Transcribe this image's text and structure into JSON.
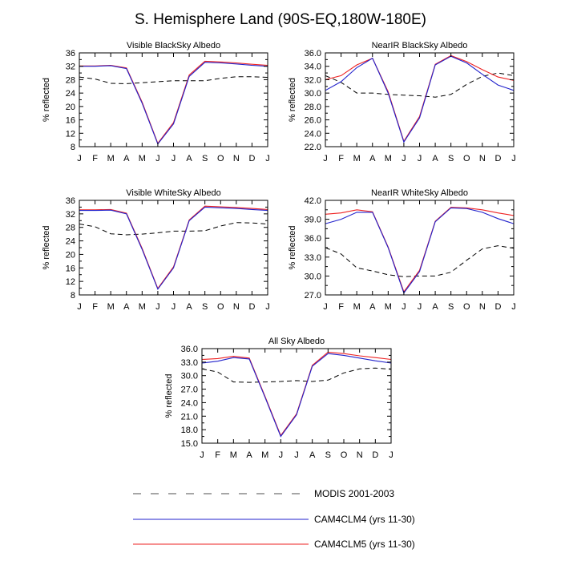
{
  "figure": {
    "title": "S. Hemisphere Land (90S-EQ,180W-180E)"
  },
  "legend": [
    {
      "label": "MODIS 2001-2003",
      "color": "#888888",
      "dash": "dashed"
    },
    {
      "label": "CAM4CLM4 (yrs 11-30)",
      "color": "#2222cc",
      "dash": "solid"
    },
    {
      "label": "CAM4CLM5 (yrs 11-30)",
      "color": "#ee2222",
      "dash": "solid"
    }
  ],
  "colors": {
    "modis": "#000000",
    "clm4": "#2222cc",
    "clm5": "#ee2222"
  },
  "chart_data": [
    {
      "type": "line",
      "title": "Visible BlackSky Albedo",
      "ylabel": "% reflected",
      "categories": [
        "J",
        "F",
        "M",
        "A",
        "M",
        "J",
        "J",
        "A",
        "S",
        "O",
        "N",
        "D",
        "J"
      ],
      "ylim": [
        8,
        36
      ],
      "yticks": [
        "8",
        "12",
        "16",
        "20",
        "24",
        "28",
        "32",
        "36"
      ],
      "series": [
        {
          "name": "MODIS 2001-2003",
          "values": [
            28.8,
            28.2,
            26.9,
            26.8,
            27.1,
            27.4,
            27.7,
            27.7,
            27.7,
            28.4,
            28.9,
            28.9,
            28.7
          ]
        },
        {
          "name": "CAM4CLM4 (yrs 11-30)",
          "values": [
            32.0,
            32.0,
            32.2,
            31.3,
            21.0,
            8.8,
            14.8,
            29.0,
            33.2,
            33.0,
            32.7,
            32.3,
            32.0
          ]
        },
        {
          "name": "CAM4CLM5 (yrs 11-30)",
          "values": [
            32.1,
            32.1,
            32.3,
            31.5,
            21.3,
            9.0,
            15.2,
            29.4,
            33.5,
            33.3,
            33.0,
            32.6,
            32.3
          ]
        }
      ]
    },
    {
      "type": "line",
      "title": "NearIR BlackSky Albedo",
      "ylabel": "% reflected",
      "categories": [
        "J",
        "F",
        "M",
        "A",
        "M",
        "J",
        "J",
        "A",
        "S",
        "O",
        "N",
        "D",
        "J"
      ],
      "ylim": [
        22,
        36
      ],
      "yticks": [
        "22.0",
        "24.0",
        "26.0",
        "28.0",
        "30.0",
        "32.0",
        "34.0",
        "36.0"
      ],
      "series": [
        {
          "name": "MODIS 2001-2003",
          "values": [
            32.6,
            31.6,
            30.0,
            30.0,
            29.8,
            29.7,
            29.6,
            29.4,
            29.8,
            31.3,
            32.5,
            33.0,
            32.6
          ]
        },
        {
          "name": "CAM4CLM4 (yrs 11-30)",
          "values": [
            30.4,
            31.7,
            33.8,
            35.2,
            30.0,
            22.7,
            26.3,
            34.2,
            35.5,
            34.5,
            32.8,
            31.2,
            30.4
          ]
        },
        {
          "name": "CAM4CLM5 (yrs 11-30)",
          "values": [
            32.0,
            32.6,
            34.2,
            35.2,
            30.2,
            22.8,
            26.5,
            34.3,
            35.6,
            34.7,
            33.5,
            32.4,
            31.9
          ]
        }
      ]
    },
    {
      "type": "line",
      "title": "Visible WhiteSky Albedo",
      "ylabel": "% reflected",
      "categories": [
        "J",
        "F",
        "M",
        "A",
        "M",
        "J",
        "J",
        "A",
        "S",
        "O",
        "N",
        "D",
        "J"
      ],
      "ylim": [
        8,
        36
      ],
      "yticks": [
        "8",
        "12",
        "16",
        "20",
        "24",
        "28",
        "32",
        "36"
      ],
      "series": [
        {
          "name": "MODIS 2001-2003",
          "values": [
            29.0,
            28.2,
            26.1,
            25.8,
            26.0,
            26.4,
            26.9,
            26.9,
            27.0,
            28.4,
            29.4,
            29.3,
            29.0
          ]
        },
        {
          "name": "CAM4CLM4 (yrs 11-30)",
          "values": [
            33.0,
            33.0,
            33.1,
            32.0,
            21.5,
            9.7,
            16.0,
            30.0,
            34.0,
            33.8,
            33.6,
            33.3,
            33.0
          ]
        },
        {
          "name": "CAM4CLM5 (yrs 11-30)",
          "values": [
            33.2,
            33.2,
            33.3,
            32.2,
            21.8,
            9.9,
            16.3,
            30.2,
            34.3,
            34.1,
            33.9,
            33.6,
            33.3
          ]
        }
      ]
    },
    {
      "type": "line",
      "title": "NearIR WhiteSky Albedo",
      "ylabel": "% reflected",
      "categories": [
        "J",
        "F",
        "M",
        "A",
        "M",
        "J",
        "J",
        "A",
        "S",
        "O",
        "N",
        "D",
        "J"
      ],
      "ylim": [
        27,
        42
      ],
      "yticks": [
        "27.0",
        "30.0",
        "33.0",
        "36.0",
        "39.0",
        "42.0"
      ],
      "series": [
        {
          "name": "MODIS 2001-2003",
          "values": [
            34.5,
            33.5,
            31.3,
            30.8,
            30.2,
            29.9,
            30.0,
            30.0,
            30.6,
            32.5,
            34.3,
            34.8,
            34.4
          ]
        },
        {
          "name": "CAM4CLM4 (yrs 11-30)",
          "values": [
            38.3,
            39.0,
            40.1,
            40.1,
            34.5,
            27.3,
            30.7,
            38.6,
            40.8,
            40.7,
            40.1,
            39.1,
            38.3
          ]
        },
        {
          "name": "CAM4CLM5 (yrs 11-30)",
          "values": [
            39.8,
            40.0,
            40.5,
            40.2,
            34.6,
            27.5,
            30.9,
            38.7,
            40.9,
            40.8,
            40.5,
            40.0,
            39.6
          ]
        }
      ]
    },
    {
      "type": "line",
      "title": "All Sky Albedo",
      "ylabel": "% reflected",
      "categories": [
        "J",
        "F",
        "M",
        "A",
        "M",
        "J",
        "J",
        "A",
        "S",
        "O",
        "N",
        "D",
        "J"
      ],
      "ylim": [
        15,
        36
      ],
      "yticks": [
        "15.0",
        "18.0",
        "21.0",
        "24.0",
        "27.0",
        "30.0",
        "33.0",
        "36.0"
      ],
      "series": [
        {
          "name": "MODIS 2001-2003",
          "values": [
            31.5,
            30.8,
            28.6,
            28.5,
            28.6,
            28.7,
            28.9,
            28.7,
            29.0,
            30.6,
            31.5,
            31.7,
            31.4
          ]
        },
        {
          "name": "CAM4CLM4 (yrs 11-30)",
          "values": [
            32.8,
            33.2,
            34.0,
            33.7,
            25.2,
            16.5,
            21.3,
            32.1,
            34.9,
            34.5,
            33.9,
            33.3,
            32.8
          ]
        },
        {
          "name": "CAM4CLM5 (yrs 11-30)",
          "values": [
            33.6,
            33.8,
            34.3,
            33.9,
            25.4,
            16.7,
            21.5,
            32.3,
            35.2,
            34.9,
            34.4,
            34.0,
            33.6
          ]
        }
      ]
    }
  ]
}
